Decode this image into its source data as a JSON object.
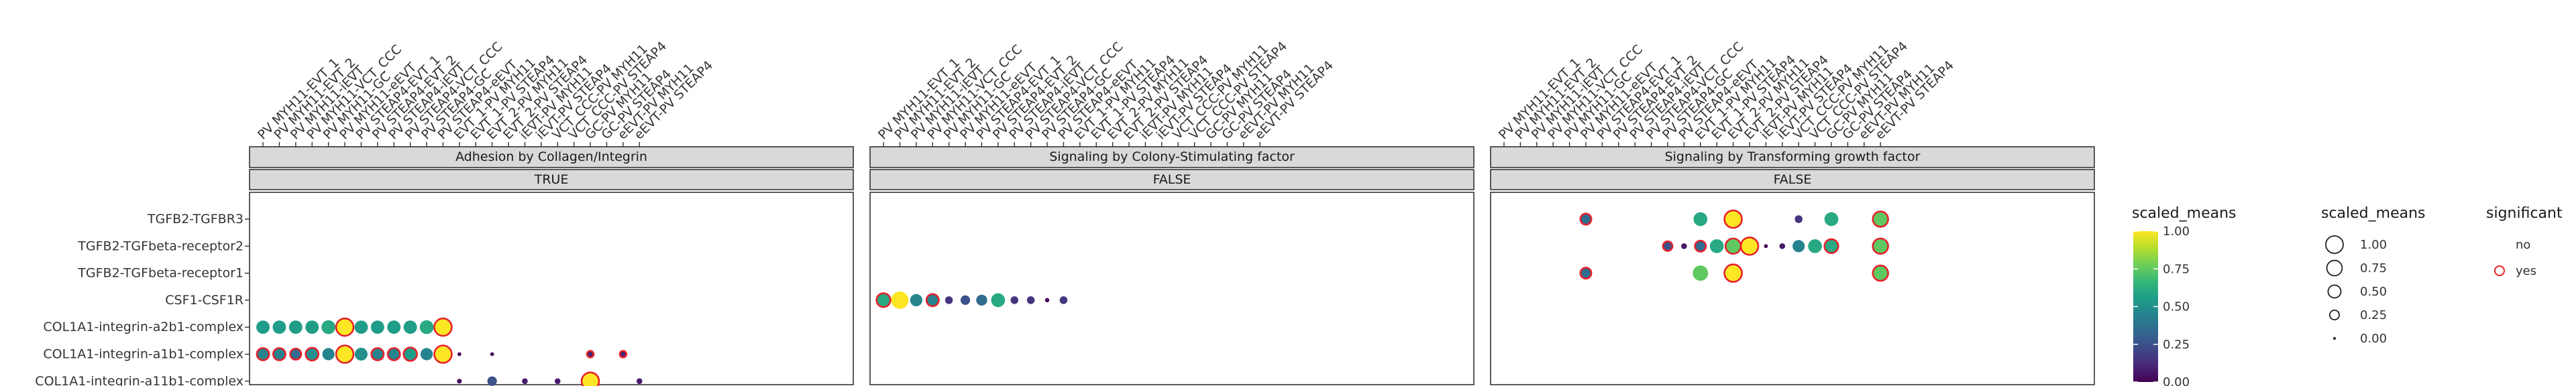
{
  "chart_data": {
    "type": "scatter",
    "subtype": "dot-plot",
    "rows": [
      "TGFB2-TGFBR3",
      "TGFB2-TGFbeta-receptor2",
      "TGFB2-TGFbeta-receptor1",
      "CSF1-CSF1R",
      "COL1A1-integrin-a2b1-complex",
      "COL1A1-integrin-a1b1-complex",
      "COL1A1-integrin-a11b1-complex"
    ],
    "columns": [
      "PV MYH11-EVT_1",
      "PV MYH11-EVT_2",
      "PV MYH11-iEVT",
      "PV MYH11-VCT_CCC",
      "PV MYH11-GC",
      "PV MYH11-eEVT",
      "PV STEAP4-EVT_1",
      "PV STEAP4-EVT_2",
      "PV STEAP4-iEVT",
      "PV STEAP4-VCT_CCC",
      "PV STEAP4-GC",
      "PV STEAP4-eEVT",
      "EVT_1-PV MYH11",
      "EVT_1-PV STEAP4",
      "EVT_2-PV MYH11",
      "EVT_2-PV STEAP4",
      "iEVT-PV MYH11",
      "iEVT-PV STEAP4",
      "VCT_CCC-PV MYH11",
      "VCT_CCC-PV STEAP4",
      "GC-PV MYH11",
      "GC-PV STEAP4",
      "eEVT-PV MYH11",
      "eEVT-PV STEAP4"
    ],
    "panels": [
      {
        "title": "Adhesion by Collagen/Integrin",
        "strip": "TRUE",
        "points": [
          {
            "row": "COL1A1-integrin-a2b1-complex",
            "col": "PV MYH11-EVT_1",
            "scaled_means": 0.55,
            "significant": "no"
          },
          {
            "row": "COL1A1-integrin-a2b1-complex",
            "col": "PV MYH11-EVT_2",
            "scaled_means": 0.55,
            "significant": "no"
          },
          {
            "row": "COL1A1-integrin-a2b1-complex",
            "col": "PV MYH11-iEVT",
            "scaled_means": 0.55,
            "significant": "no"
          },
          {
            "row": "COL1A1-integrin-a2b1-complex",
            "col": "PV MYH11-VCT_CCC",
            "scaled_means": 0.55,
            "significant": "no"
          },
          {
            "row": "COL1A1-integrin-a2b1-complex",
            "col": "PV MYH11-GC",
            "scaled_means": 0.6,
            "significant": "no"
          },
          {
            "row": "COL1A1-integrin-a2b1-complex",
            "col": "PV MYH11-eEVT",
            "scaled_means": 1.0,
            "significant": "yes"
          },
          {
            "row": "COL1A1-integrin-a2b1-complex",
            "col": "PV STEAP4-EVT_1",
            "scaled_means": 0.55,
            "significant": "no"
          },
          {
            "row": "COL1A1-integrin-a2b1-complex",
            "col": "PV STEAP4-EVT_2",
            "scaled_means": 0.55,
            "significant": "no"
          },
          {
            "row": "COL1A1-integrin-a2b1-complex",
            "col": "PV STEAP4-iEVT",
            "scaled_means": 0.55,
            "significant": "no"
          },
          {
            "row": "COL1A1-integrin-a2b1-complex",
            "col": "PV STEAP4-VCT_CCC",
            "scaled_means": 0.55,
            "significant": "no"
          },
          {
            "row": "COL1A1-integrin-a2b1-complex",
            "col": "PV STEAP4-GC",
            "scaled_means": 0.6,
            "significant": "no"
          },
          {
            "row": "COL1A1-integrin-a2b1-complex",
            "col": "PV STEAP4-eEVT",
            "scaled_means": 1.0,
            "significant": "yes"
          },
          {
            "row": "COL1A1-integrin-a1b1-complex",
            "col": "PV MYH11-EVT_1",
            "scaled_means": 0.45,
            "significant": "yes"
          },
          {
            "row": "COL1A1-integrin-a1b1-complex",
            "col": "PV MYH11-EVT_2",
            "scaled_means": 0.45,
            "significant": "yes"
          },
          {
            "row": "COL1A1-integrin-a1b1-complex",
            "col": "PV MYH11-iEVT",
            "scaled_means": 0.35,
            "significant": "yes"
          },
          {
            "row": "COL1A1-integrin-a1b1-complex",
            "col": "PV MYH11-VCT_CCC",
            "scaled_means": 0.5,
            "significant": "yes"
          },
          {
            "row": "COL1A1-integrin-a1b1-complex",
            "col": "PV MYH11-GC",
            "scaled_means": 0.45,
            "significant": "no"
          },
          {
            "row": "COL1A1-integrin-a1b1-complex",
            "col": "PV MYH11-eEVT",
            "scaled_means": 1.0,
            "significant": "yes"
          },
          {
            "row": "COL1A1-integrin-a1b1-complex",
            "col": "PV STEAP4-EVT_1",
            "scaled_means": 0.5,
            "significant": "no"
          },
          {
            "row": "COL1A1-integrin-a1b1-complex",
            "col": "PV STEAP4-EVT_2",
            "scaled_means": 0.45,
            "significant": "yes"
          },
          {
            "row": "COL1A1-integrin-a1b1-complex",
            "col": "PV STEAP4-iEVT",
            "scaled_means": 0.45,
            "significant": "yes"
          },
          {
            "row": "COL1A1-integrin-a1b1-complex",
            "col": "PV STEAP4-VCT_CCC",
            "scaled_means": 0.55,
            "significant": "yes"
          },
          {
            "row": "COL1A1-integrin-a1b1-complex",
            "col": "PV STEAP4-GC",
            "scaled_means": 0.45,
            "significant": "no"
          },
          {
            "row": "COL1A1-integrin-a1b1-complex",
            "col": "PV STEAP4-eEVT",
            "scaled_means": 1.0,
            "significant": "yes"
          },
          {
            "row": "COL1A1-integrin-a1b1-complex",
            "col": "EVT_1-PV MYH11",
            "scaled_means": 0.02,
            "significant": "no"
          },
          {
            "row": "COL1A1-integrin-a1b1-complex",
            "col": "EVT_2-PV MYH11",
            "scaled_means": 0.02,
            "significant": "no"
          },
          {
            "row": "COL1A1-integrin-a1b1-complex",
            "col": "GC-PV MYH11",
            "scaled_means": 0.1,
            "significant": "yes"
          },
          {
            "row": "COL1A1-integrin-a1b1-complex",
            "col": "eEVT-PV MYH11",
            "scaled_means": 0.1,
            "significant": "yes"
          },
          {
            "row": "COL1A1-integrin-a11b1-complex",
            "col": "EVT_1-PV MYH11",
            "scaled_means": 0.04,
            "significant": "no"
          },
          {
            "row": "COL1A1-integrin-a11b1-complex",
            "col": "EVT_2-PV MYH11",
            "scaled_means": 0.25,
            "significant": "no"
          },
          {
            "row": "COL1A1-integrin-a11b1-complex",
            "col": "iEVT-PV MYH11",
            "scaled_means": 0.07,
            "significant": "no"
          },
          {
            "row": "COL1A1-integrin-a11b1-complex",
            "col": "VCT_CCC-PV MYH11",
            "scaled_means": 0.07,
            "significant": "no"
          },
          {
            "row": "COL1A1-integrin-a11b1-complex",
            "col": "GC-PV MYH11",
            "scaled_means": 1.0,
            "significant": "yes"
          },
          {
            "row": "COL1A1-integrin-a11b1-complex",
            "col": "eEVT-PV STEAP4",
            "scaled_means": 0.07,
            "significant": "no"
          }
        ]
      },
      {
        "title": "Signaling by Colony-Stimulating factor",
        "strip": "FALSE",
        "points": [
          {
            "row": "CSF1-CSF1R",
            "col": "PV MYH11-EVT_1",
            "scaled_means": 0.6,
            "significant": "yes"
          },
          {
            "row": "CSF1-CSF1R",
            "col": "PV MYH11-EVT_2",
            "scaled_means": 1.0,
            "significant": "no"
          },
          {
            "row": "CSF1-CSF1R",
            "col": "PV MYH11-iEVT",
            "scaled_means": 0.45,
            "significant": "no"
          },
          {
            "row": "CSF1-CSF1R",
            "col": "PV MYH11-VCT_CCC",
            "scaled_means": 0.45,
            "significant": "yes"
          },
          {
            "row": "CSF1-CSF1R",
            "col": "PV MYH11-GC",
            "scaled_means": 0.15,
            "significant": "no"
          },
          {
            "row": "CSF1-CSF1R",
            "col": "PV MYH11-eEVT",
            "scaled_means": 0.25,
            "significant": "no"
          },
          {
            "row": "CSF1-CSF1R",
            "col": "PV STEAP4-EVT_1",
            "scaled_means": 0.35,
            "significant": "no"
          },
          {
            "row": "CSF1-CSF1R",
            "col": "PV STEAP4-EVT_2",
            "scaled_means": 0.6,
            "significant": "no"
          },
          {
            "row": "CSF1-CSF1R",
            "col": "PV STEAP4-iEVT",
            "scaled_means": 0.15,
            "significant": "no"
          },
          {
            "row": "CSF1-CSF1R",
            "col": "PV STEAP4-VCT_CCC",
            "scaled_means": 0.15,
            "significant": "no"
          },
          {
            "row": "CSF1-CSF1R",
            "col": "PV STEAP4-GC",
            "scaled_means": 0.03,
            "significant": "no"
          },
          {
            "row": "CSF1-CSF1R",
            "col": "PV STEAP4-eEVT",
            "scaled_means": 0.15,
            "significant": "no"
          }
        ]
      },
      {
        "title": "Signaling by Transforming growth factor",
        "strip": "FALSE",
        "points": [
          {
            "row": "TGFB2-TGFBR3",
            "col": "PV MYH11-eEVT",
            "scaled_means": 0.35,
            "significant": "yes"
          },
          {
            "row": "TGFB2-TGFBR3",
            "col": "EVT_1-PV MYH11",
            "scaled_means": 0.6,
            "significant": "no"
          },
          {
            "row": "TGFB2-TGFBR3",
            "col": "EVT_2-PV MYH11",
            "scaled_means": 1.0,
            "significant": "yes"
          },
          {
            "row": "TGFB2-TGFBR3",
            "col": "VCT_CCC-PV MYH11",
            "scaled_means": 0.15,
            "significant": "no"
          },
          {
            "row": "TGFB2-TGFBR3",
            "col": "GC-PV MYH11",
            "scaled_means": 0.6,
            "significant": "no"
          },
          {
            "row": "TGFB2-TGFBR3",
            "col": "eEVT-PV STEAP4",
            "scaled_means": 0.75,
            "significant": "yes"
          },
          {
            "row": "TGFB2-TGFbeta-receptor2",
            "col": "PV STEAP4-GC",
            "scaled_means": 0.25,
            "significant": "yes"
          },
          {
            "row": "TGFB2-TGFbeta-receptor2",
            "col": "PV STEAP4-eEVT",
            "scaled_means": 0.07,
            "significant": "no"
          },
          {
            "row": "TGFB2-TGFbeta-receptor2",
            "col": "EVT_1-PV MYH11",
            "scaled_means": 0.35,
            "significant": "yes"
          },
          {
            "row": "TGFB2-TGFbeta-receptor2",
            "col": "EVT_1-PV STEAP4",
            "scaled_means": 0.6,
            "significant": "no"
          },
          {
            "row": "TGFB2-TGFbeta-receptor2",
            "col": "EVT_2-PV MYH11",
            "scaled_means": 0.75,
            "significant": "yes"
          },
          {
            "row": "TGFB2-TGFbeta-receptor2",
            "col": "EVT_2-PV STEAP4",
            "scaled_means": 1.0,
            "significant": "yes"
          },
          {
            "row": "TGFB2-TGFbeta-receptor2",
            "col": "iEVT-PV MYH11",
            "scaled_means": 0.02,
            "significant": "no"
          },
          {
            "row": "TGFB2-TGFbeta-receptor2",
            "col": "iEVT-PV STEAP4",
            "scaled_means": 0.07,
            "significant": "no"
          },
          {
            "row": "TGFB2-TGFbeta-receptor2",
            "col": "VCT_CCC-PV MYH11",
            "scaled_means": 0.45,
            "significant": "no"
          },
          {
            "row": "TGFB2-TGFbeta-receptor2",
            "col": "VCT_CCC-PV STEAP4",
            "scaled_means": 0.6,
            "significant": "no"
          },
          {
            "row": "TGFB2-TGFbeta-receptor2",
            "col": "GC-PV MYH11",
            "scaled_means": 0.6,
            "significant": "yes"
          },
          {
            "row": "TGFB2-TGFbeta-receptor2",
            "col": "eEVT-PV STEAP4",
            "scaled_means": 0.75,
            "significant": "yes"
          },
          {
            "row": "TGFB2-TGFbeta-receptor1",
            "col": "PV MYH11-eEVT",
            "scaled_means": 0.35,
            "significant": "yes"
          },
          {
            "row": "TGFB2-TGFbeta-receptor1",
            "col": "EVT_1-PV MYH11",
            "scaled_means": 0.75,
            "significant": "no"
          },
          {
            "row": "TGFB2-TGFbeta-receptor1",
            "col": "EVT_2-PV MYH11",
            "scaled_means": 1.0,
            "significant": "yes"
          },
          {
            "row": "TGFB2-TGFbeta-receptor1",
            "col": "eEVT-PV STEAP4",
            "scaled_means": 0.75,
            "significant": "yes"
          }
        ]
      }
    ],
    "colorbar": {
      "title": "scaled_means",
      "ticks": [
        "1.00",
        "0.75",
        "0.50",
        "0.25",
        "0.00"
      ],
      "palette": "viridis",
      "range": [
        0,
        1
      ]
    },
    "size_legend": {
      "title": "scaled_means",
      "items": [
        {
          "label": "1.00",
          "value": 1.0
        },
        {
          "label": "0.75",
          "value": 0.75
        },
        {
          "label": "0.50",
          "value": 0.5
        },
        {
          "label": "0.25",
          "value": 0.25
        },
        {
          "label": "0.00",
          "value": 0.0
        }
      ]
    },
    "significance_legend": {
      "title": "significant",
      "items": [
        "no",
        "yes"
      ],
      "highlight_color": "#e8202a"
    },
    "colors": {
      "panel_background": "#ffffff",
      "strip_fill": "#d9d9d9",
      "border": "#333333",
      "significant_outline": "#e8202a"
    }
  }
}
